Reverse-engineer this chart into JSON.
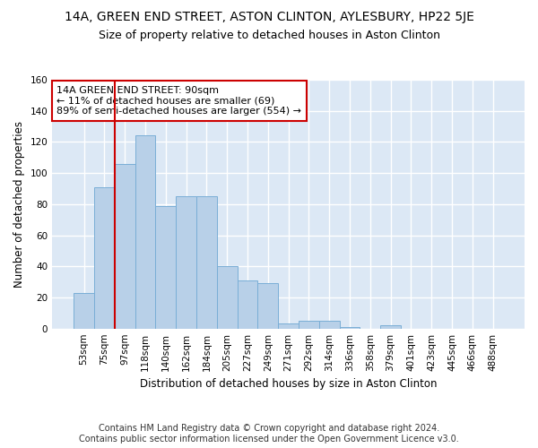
{
  "title": "14A, GREEN END STREET, ASTON CLINTON, AYLESBURY, HP22 5JE",
  "subtitle": "Size of property relative to detached houses in Aston Clinton",
  "xlabel": "Distribution of detached houses by size in Aston Clinton",
  "ylabel": "Number of detached properties",
  "footer_line1": "Contains HM Land Registry data © Crown copyright and database right 2024.",
  "footer_line2": "Contains public sector information licensed under the Open Government Licence v3.0.",
  "categories": [
    "53sqm",
    "75sqm",
    "97sqm",
    "118sqm",
    "140sqm",
    "162sqm",
    "184sqm",
    "205sqm",
    "227sqm",
    "249sqm",
    "271sqm",
    "292sqm",
    "314sqm",
    "336sqm",
    "358sqm",
    "379sqm",
    "401sqm",
    "423sqm",
    "445sqm",
    "466sqm",
    "488sqm"
  ],
  "values": [
    23,
    91,
    106,
    124,
    79,
    85,
    85,
    40,
    31,
    29,
    3,
    5,
    5,
    1,
    0,
    2,
    0,
    0,
    0,
    0,
    0
  ],
  "bar_color": "#b8d0e8",
  "bar_edge_color": "#7aaed6",
  "red_line_index": 1.5,
  "annotation_text": "14A GREEN END STREET: 90sqm\n← 11% of detached houses are smaller (69)\n89% of semi-detached houses are larger (554) →",
  "annotation_box_color": "#ffffff",
  "annotation_box_edge_color": "#cc0000",
  "ylim": [
    0,
    160
  ],
  "yticks": [
    0,
    20,
    40,
    60,
    80,
    100,
    120,
    140,
    160
  ],
  "background_color": "#dce8f5",
  "grid_color": "#ffffff",
  "figure_bg": "#ffffff",
  "title_fontsize": 10,
  "subtitle_fontsize": 9,
  "axis_label_fontsize": 8.5,
  "tick_fontsize": 7.5,
  "annotation_fontsize": 8,
  "footer_fontsize": 7
}
